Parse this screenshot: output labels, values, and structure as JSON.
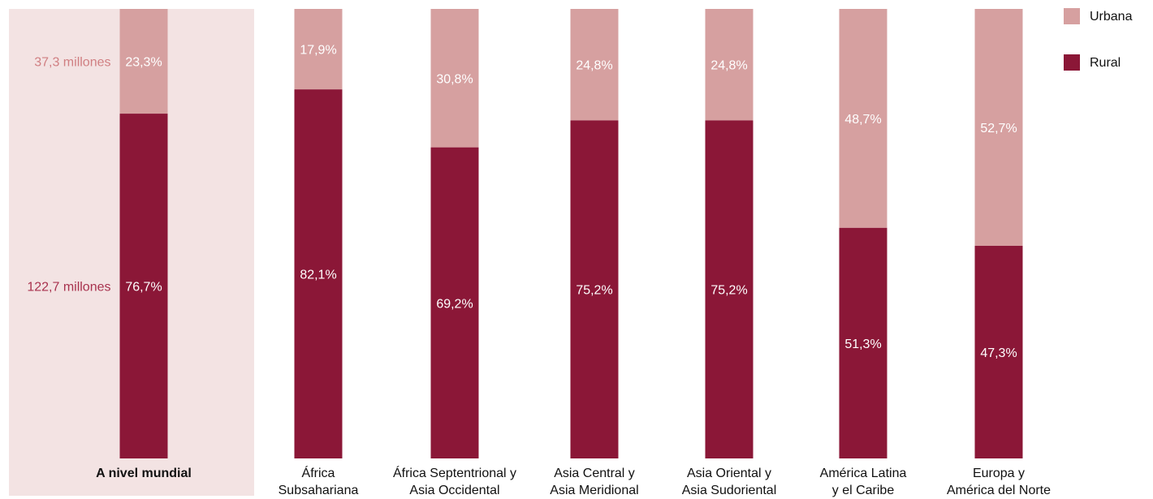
{
  "chart_data": {
    "type": "bar",
    "stacked": true,
    "percent": true,
    "categories": [
      [
        "A nivel mundial"
      ],
      [
        "África",
        "Subsahariana"
      ],
      [
        "África Septentrional y",
        "Asia Occidental"
      ],
      [
        "Asia Central y",
        "Asia Meridional"
      ],
      [
        "Asia Oriental y",
        "Asia Sudoriental"
      ],
      [
        "América Latina",
        "y el Caribe"
      ],
      [
        "Europa y",
        "América del Norte"
      ]
    ],
    "series": [
      {
        "name": "Rural",
        "color": "#8b1737",
        "values": [
          76.7,
          82.1,
          69.2,
          75.2,
          75.2,
          51.3,
          47.3
        ],
        "labels": [
          "76,7%",
          "82,1%",
          "69,2%",
          "75,2%",
          "75,2%",
          "51,3%",
          "47,3%"
        ]
      },
      {
        "name": "Urbana",
        "color": "#d6a0a0",
        "values": [
          23.3,
          17.9,
          30.8,
          24.8,
          24.8,
          48.7,
          52.7
        ],
        "labels": [
          "23,3%",
          "17,9%",
          "30,8%",
          "24,8%",
          "24,8%",
          "48,7%",
          "52,7%"
        ]
      }
    ],
    "highlight_category": 0,
    "highlight_background": "#f3e3e3",
    "world_annotations": {
      "urbana": "37,3 millones",
      "rural": "122,7 millones",
      "urbana_color": "#d07f82",
      "rural_color": "#a8324e"
    },
    "legend": {
      "position": "top-right",
      "items": [
        {
          "name": "Urbana",
          "color": "#d6a0a0"
        },
        {
          "name": "Rural",
          "color": "#8b1737"
        }
      ]
    },
    "ylim": [
      0,
      100
    ]
  }
}
